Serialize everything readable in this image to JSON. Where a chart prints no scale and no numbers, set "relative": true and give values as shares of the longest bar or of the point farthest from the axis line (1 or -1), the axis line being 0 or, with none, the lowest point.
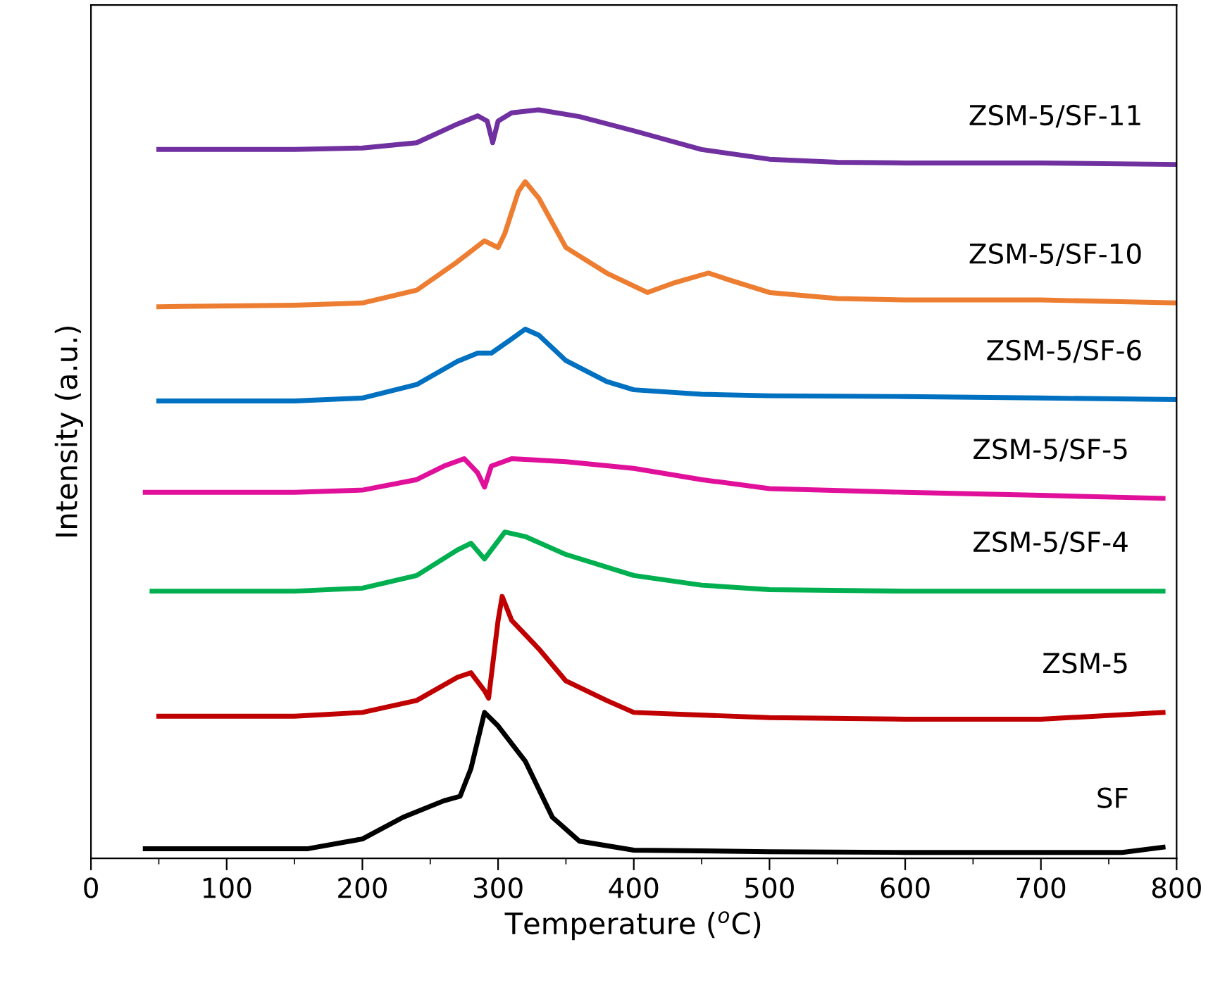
{
  "chart_data": {
    "type": "line",
    "relative": true,
    "xlabel": "Temperature ($^{o}$C)",
    "ylabel": "Intensity (a.u.)",
    "xlim": [
      0,
      800
    ],
    "xticks": [
      0,
      100,
      200,
      300,
      400,
      500,
      600,
      700,
      800
    ],
    "grid": false,
    "legend": false,
    "marker": "none",
    "line_style": "solid",
    "series": [
      {
        "name": "SF",
        "color": "#000000",
        "x": [
          40,
          160,
          200,
          230,
          260,
          272,
          280,
          290,
          300,
          320,
          340,
          360,
          400,
          500,
          600,
          700,
          760,
          790
        ],
        "values": [
          0.013,
          0.013,
          0.026,
          0.055,
          0.077,
          0.083,
          0.12,
          0.195,
          0.177,
          0.13,
          0.055,
          0.023,
          0.011,
          0.009,
          0.008,
          0.008,
          0.008,
          0.015
        ]
      },
      {
        "name": "ZSM-5",
        "color": "#c00000",
        "x": [
          50,
          150,
          200,
          240,
          270,
          280,
          290,
          293,
          300,
          303,
          310,
          330,
          350,
          380,
          400,
          500,
          600,
          700,
          790
        ],
        "values": [
          0.19,
          0.19,
          0.195,
          0.211,
          0.242,
          0.248,
          0.224,
          0.214,
          0.318,
          0.35,
          0.318,
          0.28,
          0.237,
          0.211,
          0.195,
          0.188,
          0.186,
          0.186,
          0.195
        ]
      },
      {
        "name": "ZSM-5/SF-4",
        "color": "#00b050",
        "x": [
          45,
          150,
          200,
          240,
          270,
          280,
          290,
          295,
          305,
          320,
          350,
          400,
          450,
          500,
          600,
          700,
          790
        ],
        "values": [
          0.357,
          0.357,
          0.361,
          0.378,
          0.412,
          0.421,
          0.4,
          0.412,
          0.436,
          0.43,
          0.406,
          0.378,
          0.365,
          0.359,
          0.357,
          0.357,
          0.357
        ]
      },
      {
        "name": "ZSM-5/SF-5",
        "color": "#e0109a",
        "x": [
          40,
          150,
          200,
          240,
          260,
          275,
          285,
          290,
          295,
          310,
          350,
          400,
          450,
          500,
          600,
          700,
          790
        ],
        "values": [
          0.489,
          0.489,
          0.492,
          0.506,
          0.524,
          0.534,
          0.515,
          0.496,
          0.524,
          0.534,
          0.53,
          0.521,
          0.506,
          0.494,
          0.489,
          0.485,
          0.481
        ]
      },
      {
        "name": "ZSM-5/SF-6",
        "color": "#0070c0",
        "x": [
          50,
          150,
          200,
          240,
          270,
          285,
          295,
          310,
          320,
          330,
          350,
          380,
          400,
          450,
          500,
          600,
          700,
          800
        ],
        "values": [
          0.611,
          0.611,
          0.615,
          0.633,
          0.664,
          0.675,
          0.675,
          0.694,
          0.707,
          0.699,
          0.665,
          0.637,
          0.626,
          0.62,
          0.618,
          0.617,
          0.615,
          0.613
        ]
      },
      {
        "name": "ZSM-5/SF-10",
        "color": "#ed7d31",
        "x": [
          50,
          150,
          200,
          240,
          270,
          290,
          300,
          305,
          315,
          320,
          330,
          350,
          380,
          410,
          430,
          455,
          470,
          500,
          550,
          600,
          700,
          800
        ],
        "values": [
          0.737,
          0.739,
          0.742,
          0.759,
          0.797,
          0.825,
          0.816,
          0.835,
          0.891,
          0.904,
          0.882,
          0.816,
          0.782,
          0.756,
          0.769,
          0.782,
          0.773,
          0.756,
          0.748,
          0.746,
          0.746,
          0.742
        ]
      },
      {
        "name": "ZSM-5/SF-11",
        "color": "#7030a0",
        "x": [
          50,
          150,
          200,
          240,
          270,
          285,
          292,
          296,
          300,
          310,
          330,
          360,
          400,
          450,
          500,
          550,
          600,
          700,
          800
        ],
        "values": [
          0.947,
          0.947,
          0.949,
          0.956,
          0.981,
          0.992,
          0.985,
          0.956,
          0.985,
          0.996,
          1.0,
          0.991,
          0.972,
          0.947,
          0.934,
          0.93,
          0.929,
          0.929,
          0.927
        ]
      }
    ]
  }
}
